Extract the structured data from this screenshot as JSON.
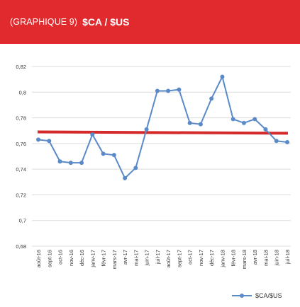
{
  "header": {
    "label": "(GRAPHIQUE 9)",
    "title": "$CA / $US"
  },
  "colors": {
    "header_bg": "#e02a2e",
    "series": "#5b8ac9",
    "reference_line": "#d42a2a",
    "grid": "#dcdcdc"
  },
  "chart_data": {
    "type": "line",
    "title": "$CA / $US",
    "ylim": [
      0.68,
      0.82
    ],
    "yticks": [
      0.68,
      0.7,
      0.72,
      0.74,
      0.76,
      0.78,
      0.8,
      0.82
    ],
    "ytick_labels": [
      "0,68",
      "0,7",
      "0,72",
      "0,74",
      "0,76",
      "0,78",
      "0,8",
      "0,82"
    ],
    "grid": "horizontal",
    "legend_position": "bottom-right",
    "categories": [
      "août-16",
      "sept-16",
      "oct-16",
      "nov-16",
      "déc-16",
      "janv-17",
      "févr-17",
      "mars-17",
      "avr-17",
      "mai-17",
      "juin-17",
      "juil-17",
      "août-17",
      "sept-17",
      "oct-17",
      "nov-17",
      "déc-17",
      "janv-18",
      "févr-18",
      "mars-18",
      "avr-18",
      "mai-18",
      "juin-18",
      "juil-18"
    ],
    "series": [
      {
        "name": "$CA/$US",
        "values": [
          0.763,
          0.762,
          0.746,
          0.745,
          0.745,
          0.767,
          0.752,
          0.751,
          0.733,
          0.741,
          0.771,
          0.801,
          0.801,
          0.802,
          0.776,
          0.775,
          0.795,
          0.812,
          0.779,
          0.776,
          0.779,
          0.771,
          0.762,
          0.761
        ]
      }
    ],
    "reference_line": {
      "start": 0.769,
      "end": 0.768
    }
  }
}
